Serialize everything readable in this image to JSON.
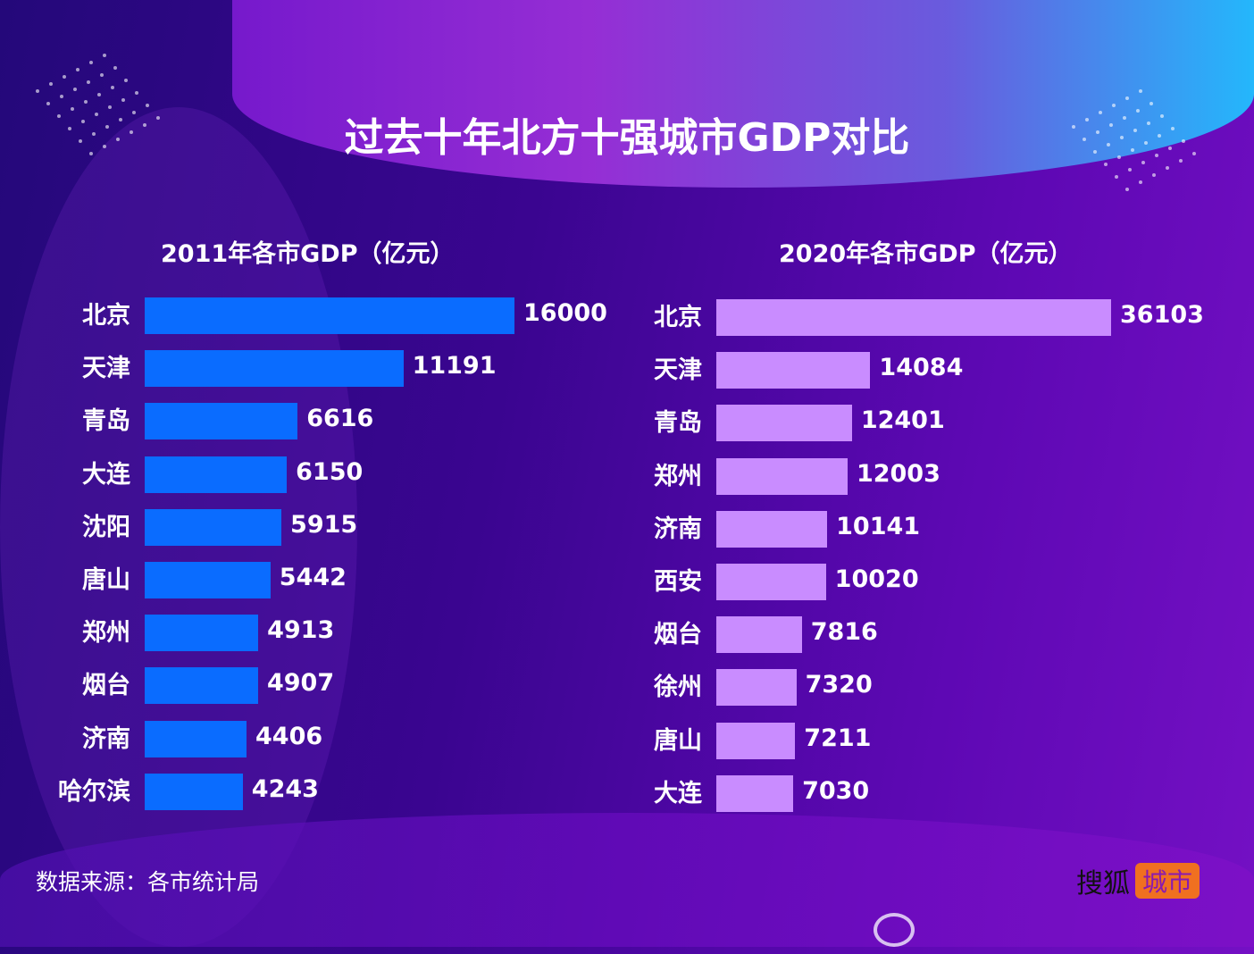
{
  "title": "过去十年北方十强城市GDP对比",
  "source": "数据来源：各市统计局",
  "logo": {
    "brand": "搜狐",
    "tag": "城市"
  },
  "chart_data": [
    {
      "type": "bar",
      "orientation": "horizontal",
      "title": "2011年各市GDP（亿元）",
      "categories": [
        "北京",
        "天津",
        "青岛",
        "大连",
        "沈阳",
        "唐山",
        "郑州",
        "烟台",
        "济南",
        "哈尔滨"
      ],
      "values": [
        16000,
        11191,
        6616,
        6150,
        5915,
        5442,
        4913,
        4907,
        4406,
        4243
      ],
      "color": "#0a6cff",
      "grid": false
    },
    {
      "type": "bar",
      "orientation": "horizontal",
      "title": "2020年各市GDP（亿元）",
      "categories": [
        "北京",
        "天津",
        "青岛",
        "郑州",
        "济南",
        "西安",
        "烟台",
        "徐州",
        "唐山",
        "大连"
      ],
      "values": [
        36103,
        14084,
        12401,
        12003,
        10141,
        10020,
        7816,
        7320,
        7211,
        7030
      ],
      "color": "#c98cff",
      "grid": false
    }
  ]
}
